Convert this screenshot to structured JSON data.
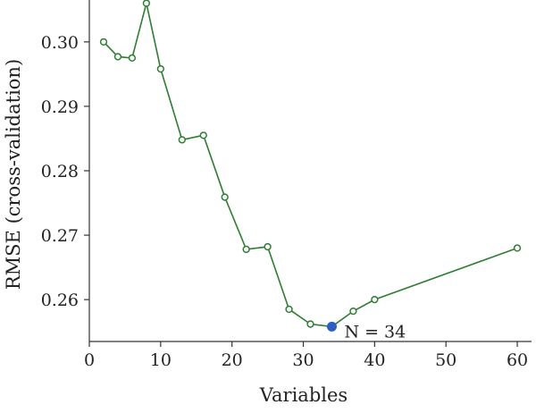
{
  "chart_data": {
    "type": "line",
    "title": "",
    "xlabel": "Variables",
    "ylabel": "RMSE (cross-validation)",
    "xlim": [
      0,
      62
    ],
    "ylim": [
      0.2535,
      0.3065
    ],
    "xticks": [
      0,
      10,
      20,
      30,
      40,
      50,
      60
    ],
    "yticks": [
      0.26,
      0.27,
      0.28,
      0.29,
      0.3
    ],
    "xtick_labels": [
      "0",
      "10",
      "20",
      "30",
      "40",
      "50",
      "60"
    ],
    "ytick_labels": [
      "0.26",
      "0.27",
      "0.28",
      "0.29",
      "0.30"
    ],
    "grid": false,
    "legend": "none",
    "series": [
      {
        "x": [
          2,
          4,
          6,
          8,
          10,
          13,
          16,
          19,
          22,
          25,
          28,
          31,
          34,
          37,
          40,
          60
        ],
        "y": [
          0.3,
          0.2977,
          0.2975,
          0.306,
          0.2958,
          0.2848,
          0.2855,
          0.2759,
          0.2678,
          0.2682,
          0.2585,
          0.2562,
          0.2558,
          0.2582,
          0.26,
          0.268
        ],
        "color": "#2e7d32"
      }
    ],
    "highlight": {
      "x": 34,
      "y": 0.2558,
      "color": "#2f5ec2"
    },
    "annotation": {
      "text": "N = 34",
      "x": 34,
      "y": 0.2558
    }
  }
}
